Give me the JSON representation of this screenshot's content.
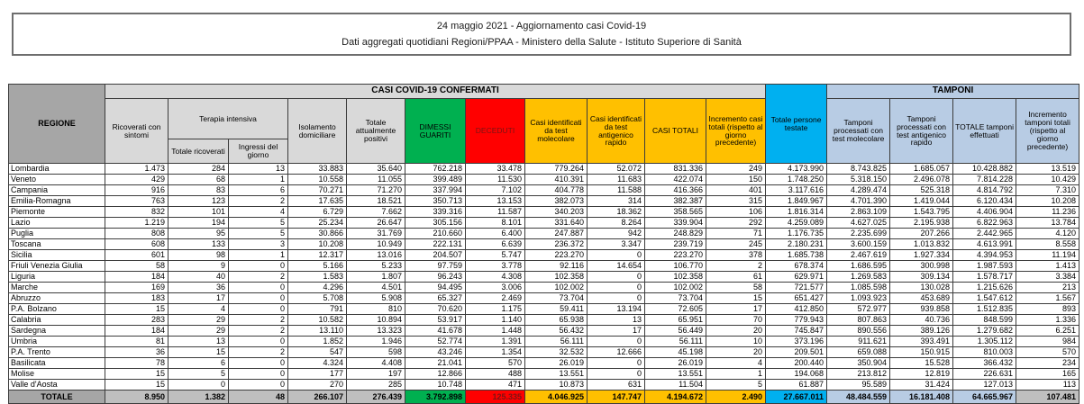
{
  "title": {
    "line1": "24 maggio 2021 - Aggiornamento casi Covid-19",
    "line2": "Dati aggregati quotidiani Regioni/PPAA - Ministero della Salute - Istituto Superiore di Sanità"
  },
  "colors": {
    "green_dimessi": "#00b050",
    "red_deceduti": "#ff0000",
    "deceduti_text": "#7b1414",
    "amber_casi": "#ffc000",
    "cyan_testate": "#00b0f0",
    "lightblue_tamponi": "#b8cce4",
    "gray_region_header": "#a6a6a6",
    "gray_banner": "#d9d9d9",
    "gray_total_cells": "#bfbfbf"
  },
  "table": {
    "header": {
      "regione": "REGIONE",
      "casi_banner": "CASI COVID-19 CONFERMATI",
      "tamponi_banner": "TAMPONI",
      "ricoverati": "Ricoverati con sintomi",
      "terapia_intensiva": "Terapia intensiva",
      "totale_ricoverati": "Totale ricoverati",
      "ingressi_giorno": "Ingressi del giorno",
      "isolamento": "Isolamento domiciliare",
      "attualmente_positivi": "Totale attualmente positivi",
      "dimessi": "DIMESSI GUARITI",
      "deceduti": "DECEDUTI",
      "casi_molecolare": "Casi identificati da test molecolare",
      "casi_antigenico": "Casi identificati da test antigenico rapido",
      "casi_totali": "CASI TOTALI",
      "incremento_casi": "Incremento casi totali (rispetto al giorno precedente)",
      "persone_testate": "Totale persone testate",
      "tamponi_molecolare": "Tamponi processati con test molecolare",
      "tamponi_antigenico": "Tamponi processati con test antigenico rapido",
      "totale_tamponi": "TOTALE tamponi effettuati",
      "incremento_tamponi": "Incremento tamponi totali (rispetto al giorno precedente)"
    },
    "rows": [
      {
        "region": "Lombardia",
        "values": [
          "1.473",
          "284",
          "13",
          "33.883",
          "35.640",
          "762.218",
          "33.478",
          "779.264",
          "52.072",
          "831.336",
          "249",
          "4.173.990",
          "8.743.825",
          "1.685.057",
          "10.428.882",
          "13.519"
        ]
      },
      {
        "region": "Veneto",
        "values": [
          "429",
          "68",
          "1",
          "10.558",
          "11.055",
          "399.489",
          "11.530",
          "410.391",
          "11.683",
          "422.074",
          "150",
          "1.748.250",
          "5.318.150",
          "2.496.078",
          "7.814.228",
          "10.429"
        ]
      },
      {
        "region": "Campania",
        "values": [
          "916",
          "83",
          "6",
          "70.271",
          "71.270",
          "337.994",
          "7.102",
          "404.778",
          "11.588",
          "416.366",
          "401",
          "3.117.616",
          "4.289.474",
          "525.318",
          "4.814.792",
          "7.310"
        ]
      },
      {
        "region": "Emilia-Romagna",
        "values": [
          "763",
          "123",
          "2",
          "17.635",
          "18.521",
          "350.713",
          "13.153",
          "382.073",
          "314",
          "382.387",
          "315",
          "1.849.967",
          "4.701.390",
          "1.419.044",
          "6.120.434",
          "10.208"
        ]
      },
      {
        "region": "Piemonte",
        "values": [
          "832",
          "101",
          "4",
          "6.729",
          "7.662",
          "339.316",
          "11.587",
          "340.203",
          "18.362",
          "358.565",
          "106",
          "1.816.314",
          "2.863.109",
          "1.543.795",
          "4.406.904",
          "11.236"
        ]
      },
      {
        "region": "Lazio",
        "values": [
          "1.219",
          "194",
          "5",
          "25.234",
          "26.647",
          "305.156",
          "8.101",
          "331.640",
          "8.264",
          "339.904",
          "292",
          "4.259.089",
          "4.627.025",
          "2.195.938",
          "6.822.963",
          "13.784"
        ]
      },
      {
        "region": "Puglia",
        "values": [
          "808",
          "95",
          "5",
          "30.866",
          "31.769",
          "210.660",
          "6.400",
          "247.887",
          "942",
          "248.829",
          "71",
          "1.176.735",
          "2.235.699",
          "207.266",
          "2.442.965",
          "4.120"
        ]
      },
      {
        "region": "Toscana",
        "values": [
          "608",
          "133",
          "3",
          "10.208",
          "10.949",
          "222.131",
          "6.639",
          "236.372",
          "3.347",
          "239.719",
          "245",
          "2.180.231",
          "3.600.159",
          "1.013.832",
          "4.613.991",
          "8.558"
        ]
      },
      {
        "region": "Sicilia",
        "values": [
          "601",
          "98",
          "1",
          "12.317",
          "13.016",
          "204.507",
          "5.747",
          "223.270",
          "0",
          "223.270",
          "378",
          "1.685.738",
          "2.467.619",
          "1.927.334",
          "4.394.953",
          "11.194"
        ]
      },
      {
        "region": "Friuli Venezia Giulia",
        "values": [
          "58",
          "9",
          "0",
          "5.166",
          "5.233",
          "97.759",
          "3.778",
          "92.116",
          "14.654",
          "106.770",
          "2",
          "678.374",
          "1.686.595",
          "300.998",
          "1.987.593",
          "1.413"
        ]
      },
      {
        "region": "Liguria",
        "values": [
          "184",
          "40",
          "2",
          "1.583",
          "1.807",
          "96.243",
          "4.308",
          "102.358",
          "0",
          "102.358",
          "61",
          "629.971",
          "1.269.583",
          "309.134",
          "1.578.717",
          "3.384"
        ]
      },
      {
        "region": "Marche",
        "values": [
          "169",
          "36",
          "0",
          "4.296",
          "4.501",
          "94.495",
          "3.006",
          "102.002",
          "0",
          "102.002",
          "58",
          "721.577",
          "1.085.598",
          "130.028",
          "1.215.626",
          "213"
        ]
      },
      {
        "region": "Abruzzo",
        "values": [
          "183",
          "17",
          "0",
          "5.708",
          "5.908",
          "65.327",
          "2.469",
          "73.704",
          "0",
          "73.704",
          "15",
          "651.427",
          "1.093.923",
          "453.689",
          "1.547.612",
          "1.567"
        ]
      },
      {
        "region": "P.A. Bolzano",
        "values": [
          "15",
          "4",
          "0",
          "791",
          "810",
          "70.620",
          "1.175",
          "59.411",
          "13.194",
          "72.605",
          "17",
          "412.850",
          "572.977",
          "939.858",
          "1.512.835",
          "893"
        ]
      },
      {
        "region": "Calabria",
        "values": [
          "283",
          "29",
          "2",
          "10.582",
          "10.894",
          "53.917",
          "1.140",
          "65.938",
          "13",
          "65.951",
          "70",
          "779.943",
          "807.863",
          "40.736",
          "848.599",
          "1.336"
        ]
      },
      {
        "region": "Sardegna",
        "values": [
          "184",
          "29",
          "2",
          "13.110",
          "13.323",
          "41.678",
          "1.448",
          "56.432",
          "17",
          "56.449",
          "20",
          "745.847",
          "890.556",
          "389.126",
          "1.279.682",
          "6.251"
        ]
      },
      {
        "region": "Umbria",
        "values": [
          "81",
          "13",
          "0",
          "1.852",
          "1.946",
          "52.774",
          "1.391",
          "56.111",
          "0",
          "56.111",
          "10",
          "373.196",
          "911.621",
          "393.491",
          "1.305.112",
          "984"
        ]
      },
      {
        "region": "P.A. Trento",
        "values": [
          "36",
          "15",
          "2",
          "547",
          "598",
          "43.246",
          "1.354",
          "32.532",
          "12.666",
          "45.198",
          "20",
          "209.501",
          "659.088",
          "150.915",
          "810.003",
          "570"
        ]
      },
      {
        "region": "Basilicata",
        "values": [
          "78",
          "6",
          "0",
          "4.324",
          "4.408",
          "21.041",
          "570",
          "26.019",
          "0",
          "26.019",
          "4",
          "200.440",
          "350.904",
          "15.528",
          "366.432",
          "234"
        ]
      },
      {
        "region": "Molise",
        "values": [
          "15",
          "5",
          "0",
          "177",
          "197",
          "12.866",
          "488",
          "13.551",
          "0",
          "13.551",
          "1",
          "194.068",
          "213.812",
          "12.819",
          "226.631",
          "165"
        ]
      },
      {
        "region": "Valle d'Aosta",
        "values": [
          "15",
          "0",
          "0",
          "270",
          "285",
          "10.748",
          "471",
          "10.873",
          "631",
          "11.504",
          "5",
          "61.887",
          "95.589",
          "31.424",
          "127.013",
          "113"
        ]
      }
    ],
    "total": {
      "label": "TOTALE",
      "values": [
        "8.950",
        "1.382",
        "48",
        "266.107",
        "276.439",
        "3.792.898",
        "125.335",
        "4.046.925",
        "147.747",
        "4.194.672",
        "2.490",
        "27.667.011",
        "48.484.559",
        "16.181.408",
        "64.665.967",
        "107.481"
      ]
    }
  }
}
